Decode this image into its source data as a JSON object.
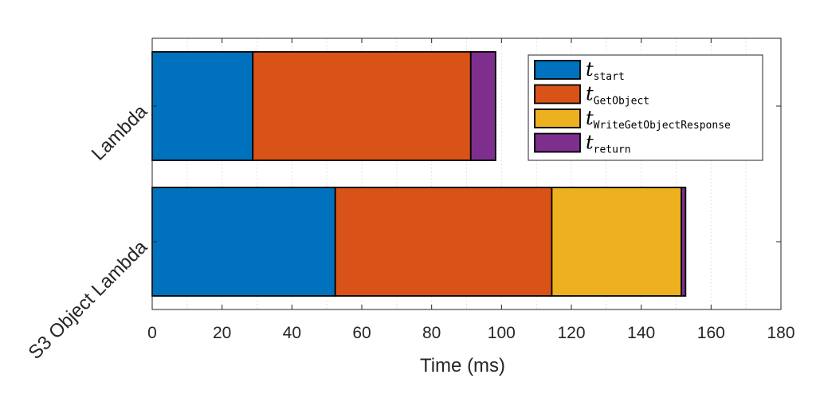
{
  "chart_data": {
    "type": "bar",
    "orientation": "horizontal",
    "stacked": true,
    "categories": [
      "Lambda",
      "S3 Object Lambda"
    ],
    "series": [
      {
        "name": "start",
        "legend_italic": "t",
        "color": "#0072BD",
        "values": [
          28.8,
          52.4
        ]
      },
      {
        "name": "GetObject",
        "legend_italic": "t",
        "color": "#D95319",
        "values": [
          62.4,
          62.0
        ]
      },
      {
        "name": "WriteGetObjectResponse",
        "legend_italic": "t",
        "color": "#EDB120",
        "values": [
          0,
          37.1
        ]
      },
      {
        "name": "return",
        "legend_italic": "t",
        "color": "#7E2F8E",
        "values": [
          7.1,
          1.2
        ]
      }
    ],
    "xlabel": "Time (ms)",
    "ylabel": "",
    "title": "",
    "xlim": [
      0,
      180
    ],
    "xticks": [
      "0",
      "20",
      "40",
      "60",
      "80",
      "100",
      "120",
      "140",
      "160",
      "180"
    ],
    "grid": "vertical dotted",
    "legend_position": "top-right"
  }
}
